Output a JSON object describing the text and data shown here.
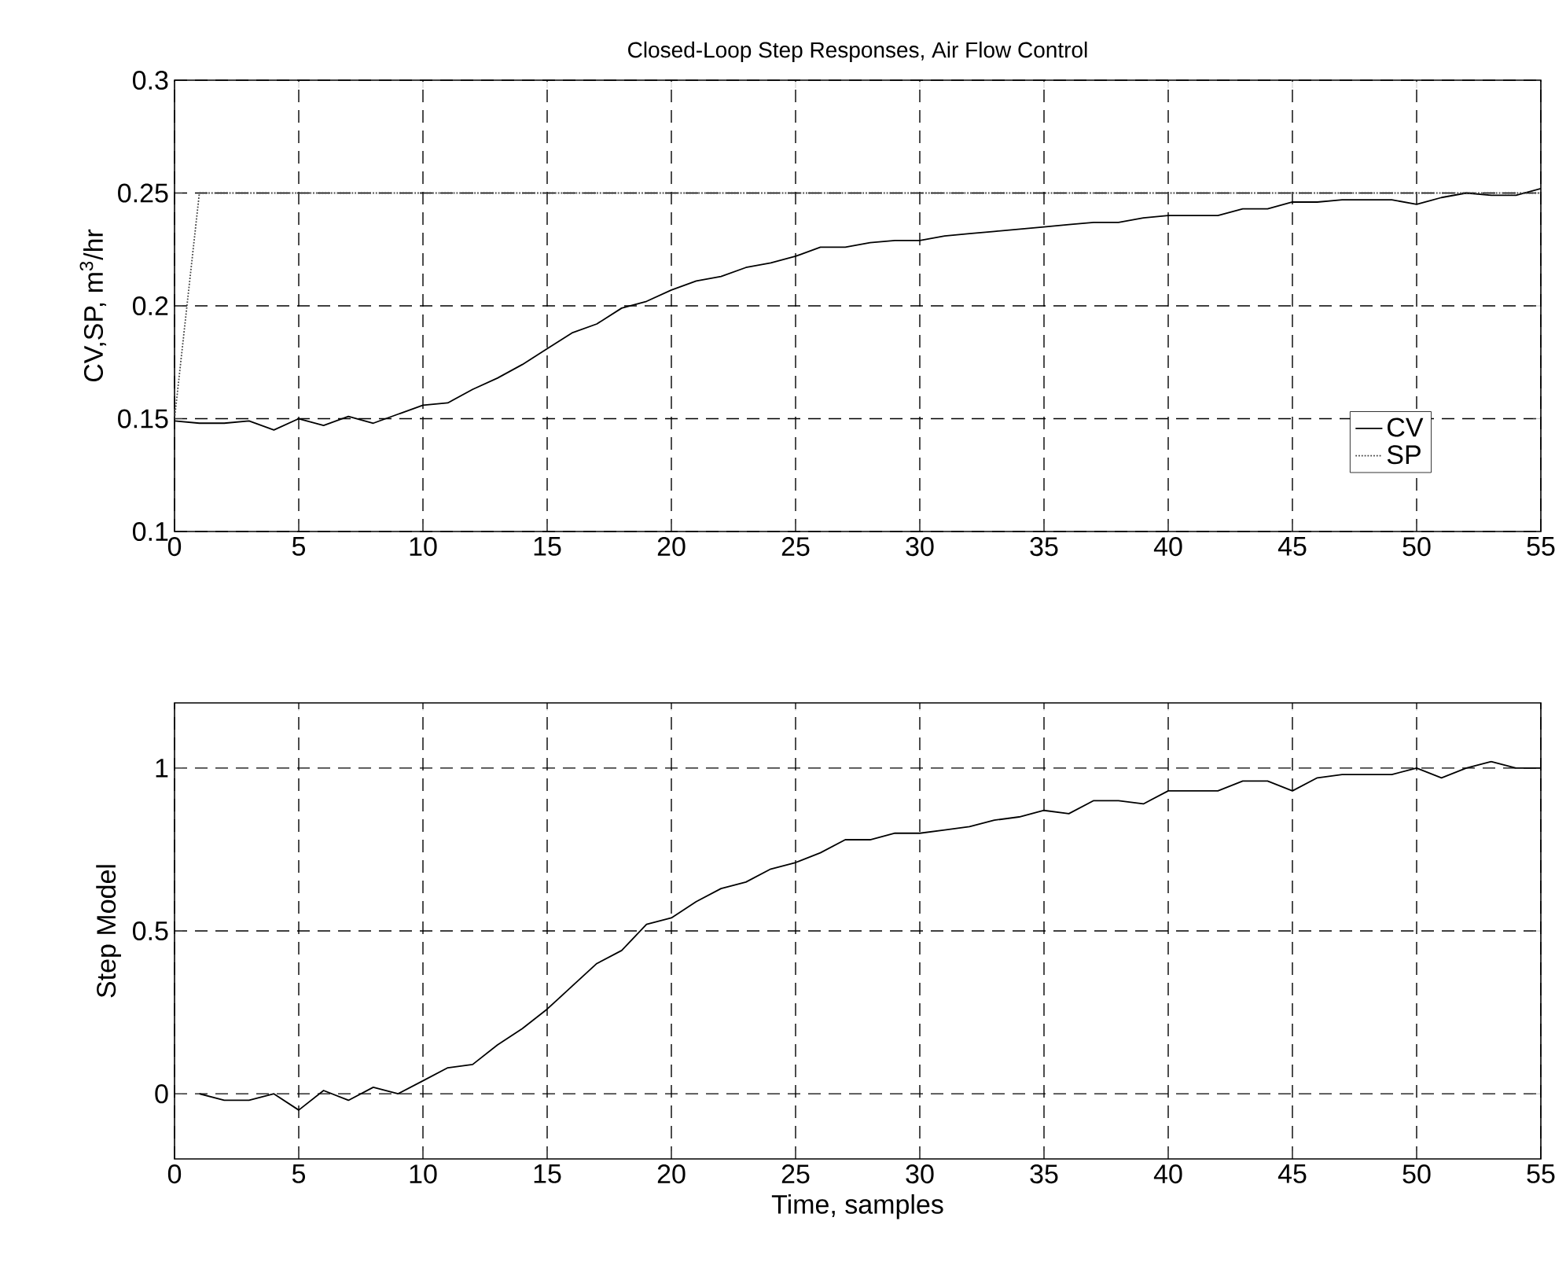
{
  "chart_data": [
    {
      "type": "line",
      "title": "Closed-Loop Step Responses, Air Flow Control",
      "ylabel": "CV,SP, m$^{3}$/hr",
      "xlim": [
        0,
        55
      ],
      "ylim": [
        0.1,
        0.3
      ],
      "xticks": [
        0,
        5,
        10,
        15,
        20,
        25,
        30,
        35,
        40,
        45,
        50,
        55
      ],
      "yticks": [
        0.1,
        0.15,
        0.2,
        0.25,
        0.3
      ],
      "grid": true,
      "legend": "right",
      "series": [
        {
          "name": "CV",
          "color": "#000000",
          "line_style": "solid",
          "x": [
            0,
            1,
            2,
            3,
            4,
            5,
            6,
            7,
            8,
            9,
            10,
            11,
            12,
            13,
            14,
            15,
            16,
            17,
            18,
            19,
            20,
            21,
            22,
            23,
            24,
            25,
            26,
            27,
            28,
            29,
            30,
            31,
            32,
            33,
            34,
            35,
            36,
            37,
            38,
            39,
            40,
            41,
            42,
            43,
            44,
            45,
            46,
            47,
            48,
            49,
            50,
            51,
            52,
            53,
            54,
            55
          ],
          "values": [
            0.149,
            0.148,
            0.148,
            0.149,
            0.145,
            0.15,
            0.147,
            0.151,
            0.148,
            0.152,
            0.156,
            0.157,
            0.163,
            0.168,
            0.174,
            0.181,
            0.188,
            0.192,
            0.199,
            0.202,
            0.207,
            0.211,
            0.213,
            0.217,
            0.219,
            0.222,
            0.226,
            0.226,
            0.228,
            0.229,
            0.229,
            0.231,
            0.232,
            0.233,
            0.234,
            0.235,
            0.236,
            0.237,
            0.237,
            0.239,
            0.24,
            0.24,
            0.24,
            0.243,
            0.243,
            0.246,
            0.246,
            0.247,
            0.247,
            0.247,
            0.245,
            0.248,
            0.25,
            0.249,
            0.249,
            0.252
          ]
        },
        {
          "name": "SP",
          "color": "#444444",
          "line_style": "dotted",
          "x": [
            0,
            1,
            55
          ],
          "values": [
            0.15,
            0.25,
            0.25
          ]
        }
      ]
    },
    {
      "type": "line",
      "xlabel": "Time, samples",
      "ylabel": "Step Model",
      "xlim": [
        0,
        55
      ],
      "ylim": [
        -0.2,
        1.2
      ],
      "xticks": [
        0,
        5,
        10,
        15,
        20,
        25,
        30,
        35,
        40,
        45,
        50,
        55
      ],
      "yticks": [
        0,
        0.5,
        1
      ],
      "grid": true,
      "series": [
        {
          "color": "#000000",
          "line_style": "solid",
          "x": [
            1,
            2,
            3,
            4,
            5,
            6,
            7,
            8,
            9,
            10,
            11,
            12,
            13,
            14,
            15,
            16,
            17,
            18,
            19,
            20,
            21,
            22,
            23,
            24,
            25,
            26,
            27,
            28,
            29,
            30,
            31,
            32,
            33,
            34,
            35,
            36,
            37,
            38,
            39,
            40,
            41,
            42,
            43,
            44,
            45,
            46,
            47,
            48,
            49,
            50,
            51,
            52,
            53,
            54,
            55
          ],
          "values": [
            0,
            -0.02,
            -0.02,
            0,
            -0.05,
            0.01,
            -0.02,
            0.02,
            0,
            0.04,
            0.08,
            0.09,
            0.15,
            0.2,
            0.26,
            0.33,
            0.4,
            0.44,
            0.52,
            0.54,
            0.59,
            0.63,
            0.65,
            0.69,
            0.71,
            0.74,
            0.78,
            0.78,
            0.8,
            0.8,
            0.81,
            0.82,
            0.84,
            0.85,
            0.87,
            0.86,
            0.9,
            0.9,
            0.89,
            0.93,
            0.93,
            0.93,
            0.96,
            0.96,
            0.93,
            0.97,
            0.98,
            0.98,
            0.98,
            1.0,
            0.97,
            1.0,
            1.02,
            1.0,
            1.0
          ]
        }
      ]
    }
  ]
}
